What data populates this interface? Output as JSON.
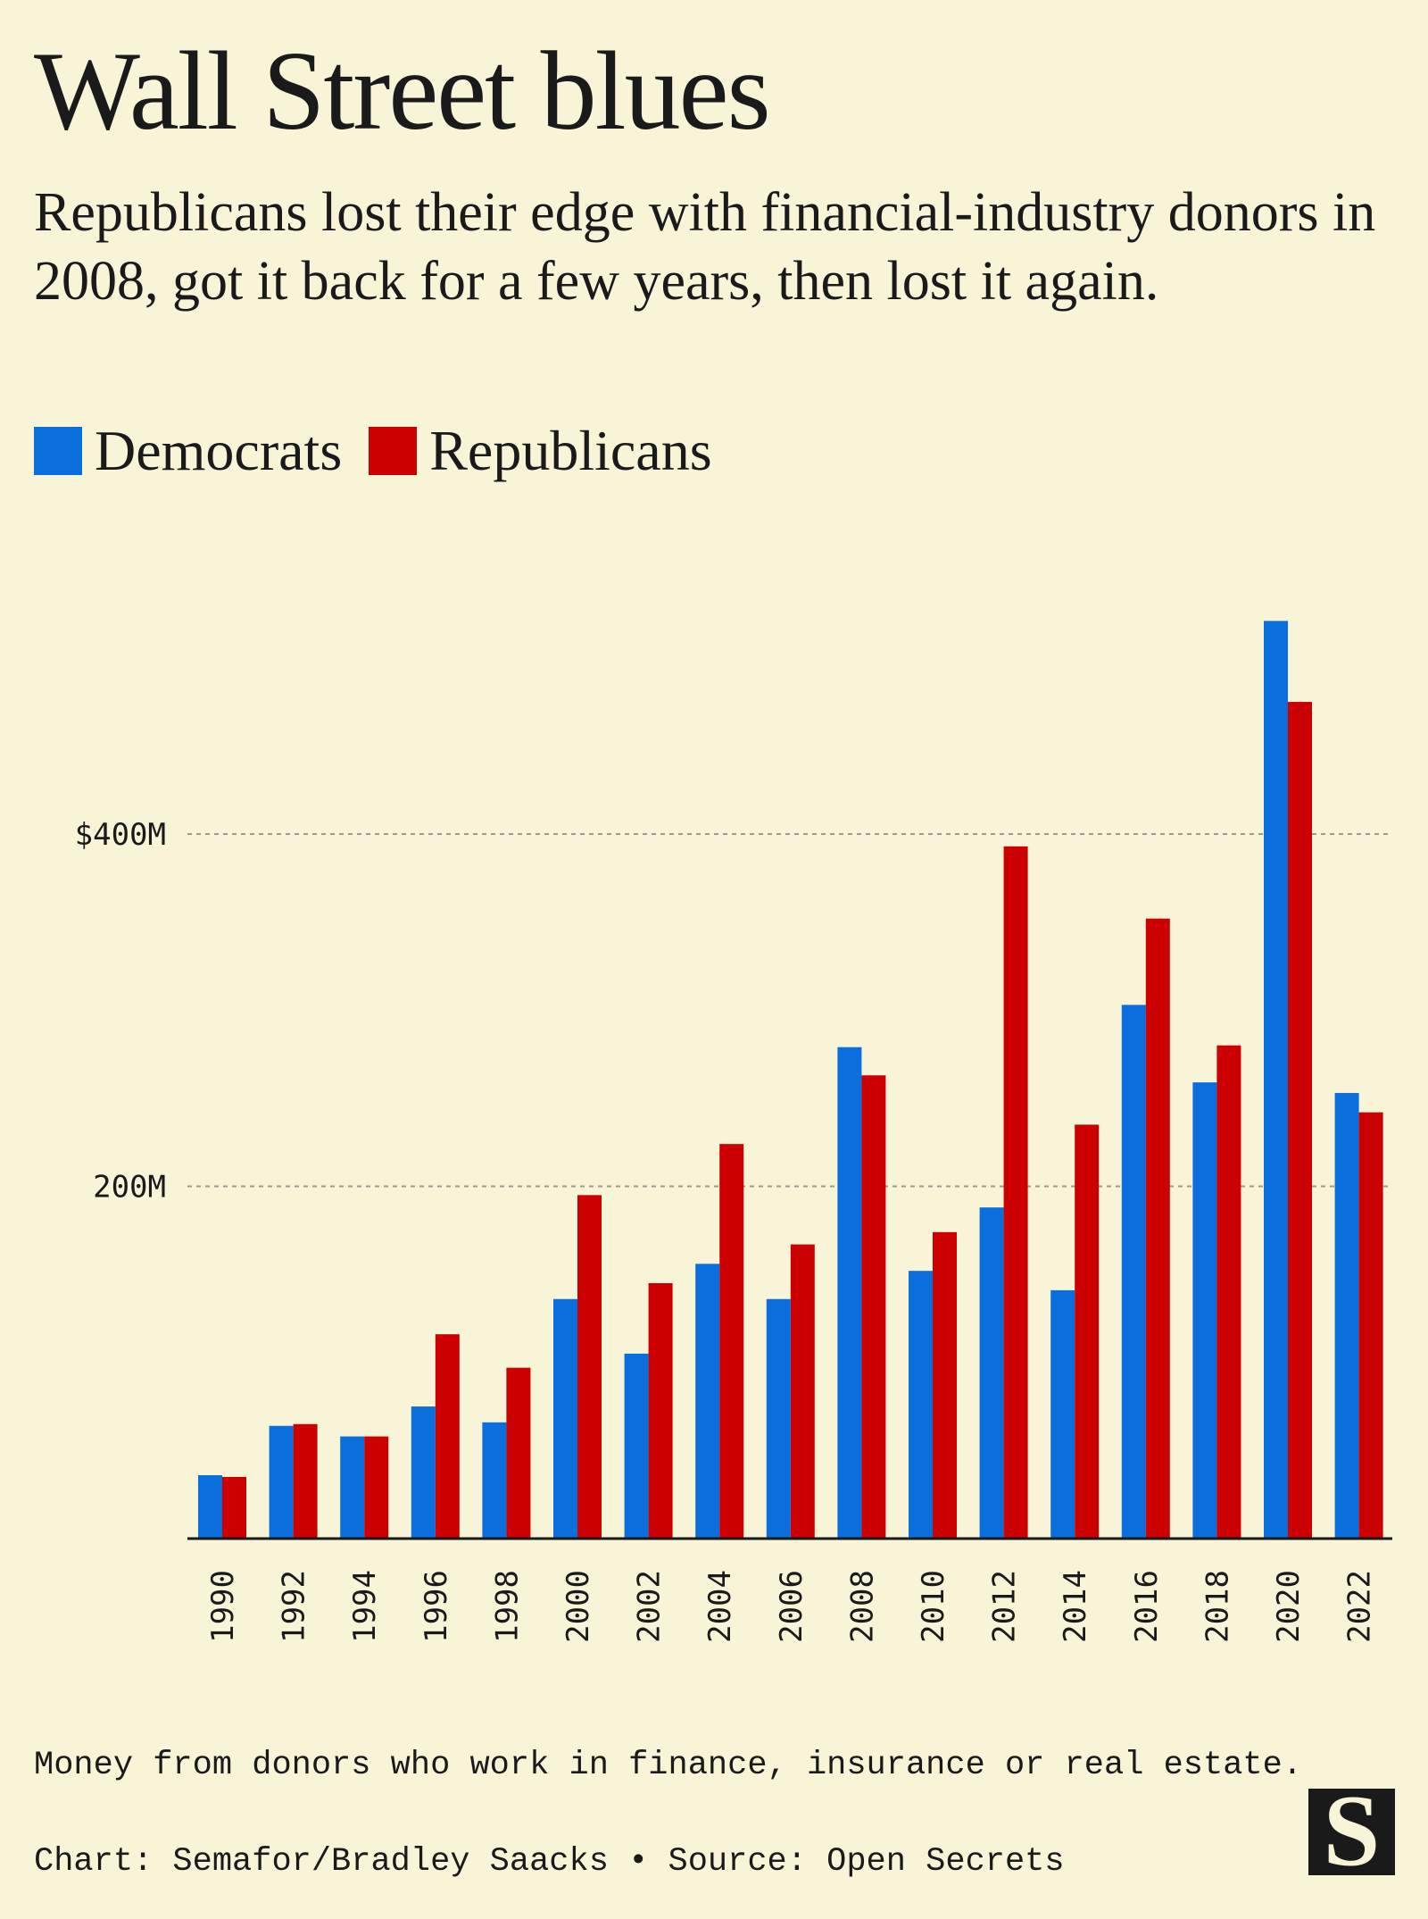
{
  "title": "Wall Street blues",
  "subtitle": "Republicans lost their edge with financial-industry donors in 2008, got it back for a few years, then lost it again.",
  "footnote": "Money from donors who work in finance, insurance or real estate.",
  "credit": "Chart: Semafor/Bradley Saacks • Source: Open Secrets",
  "logo_icon": "semafor-s-logo-icon",
  "colors": {
    "democrats": "#0a6fdc",
    "republicans": "#cc0000",
    "background": "#f8f4d7"
  },
  "chart_data": {
    "type": "bar",
    "categories": [
      "1990",
      "1992",
      "1994",
      "1996",
      "1998",
      "2000",
      "2002",
      "2004",
      "2006",
      "2008",
      "2010",
      "2012",
      "2014",
      "2016",
      "2018",
      "2020",
      "2022"
    ],
    "series": [
      {
        "name": "Democrats",
        "color": "#0a6fdc",
        "values": [
          36,
          64,
          58,
          75,
          66,
          136,
          105,
          156,
          136,
          279,
          152,
          188,
          141,
          303,
          259,
          521,
          253
        ]
      },
      {
        "name": "Republicans",
        "color": "#cc0000",
        "values": [
          35,
          65,
          58,
          116,
          97,
          195,
          145,
          224,
          167,
          263,
          174,
          393,
          235,
          352,
          280,
          475,
          242
        ]
      }
    ],
    "yticks": [
      {
        "value": 200,
        "label": "200M"
      },
      {
        "value": 400,
        "label": "$400M"
      }
    ],
    "ylim": [
      0,
      550
    ],
    "grid": true,
    "legend": "top-left"
  }
}
